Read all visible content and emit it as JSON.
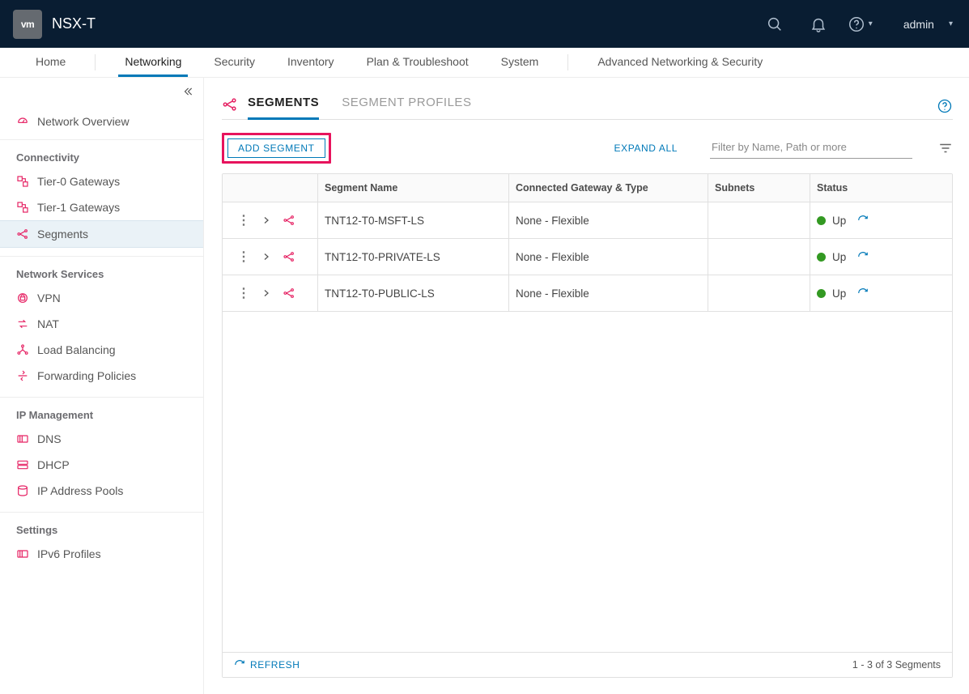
{
  "header": {
    "logo_text": "vm",
    "product": "NSX-T",
    "username": "admin"
  },
  "nav": {
    "items": [
      "Home",
      "Networking",
      "Security",
      "Inventory",
      "Plan & Troubleshoot",
      "System"
    ],
    "active": "Networking",
    "advanced": "Advanced Networking & Security"
  },
  "sidebar": {
    "overview": "Network Overview",
    "sections": {
      "connectivity": {
        "title": "Connectivity",
        "items": [
          "Tier-0 Gateways",
          "Tier-1 Gateways",
          "Segments"
        ],
        "selected": "Segments"
      },
      "network_services": {
        "title": "Network Services",
        "items": [
          "VPN",
          "NAT",
          "Load Balancing",
          "Forwarding Policies"
        ]
      },
      "ip_management": {
        "title": "IP Management",
        "items": [
          "DNS",
          "DHCP",
          "IP Address Pools"
        ]
      },
      "settings": {
        "title": "Settings",
        "items": [
          "IPv6 Profiles"
        ]
      }
    }
  },
  "tabs": {
    "segments": "SEGMENTS",
    "profiles": "SEGMENT PROFILES"
  },
  "toolbar": {
    "add_segment": "ADD SEGMENT",
    "expand_all": "EXPAND ALL",
    "filter_placeholder": "Filter by Name, Path or more"
  },
  "table": {
    "headers": {
      "name": "Segment Name",
      "gateway": "Connected Gateway & Type",
      "subnets": "Subnets",
      "status": "Status"
    },
    "rows": [
      {
        "name": "TNT12-T0-MSFT-LS",
        "gateway": "None - Flexible",
        "subnets": "",
        "status": "Up",
        "status_color": "#339922"
      },
      {
        "name": "TNT12-T0-PRIVATE-LS",
        "gateway": "None - Flexible",
        "subnets": "",
        "status": "Up",
        "status_color": "#339922"
      },
      {
        "name": "TNT12-T0-PUBLIC-LS",
        "gateway": "None - Flexible",
        "subnets": "",
        "status": "Up",
        "status_color": "#339922"
      }
    ],
    "refresh": "REFRESH",
    "paging": "1 - 3 of 3 Segments"
  }
}
